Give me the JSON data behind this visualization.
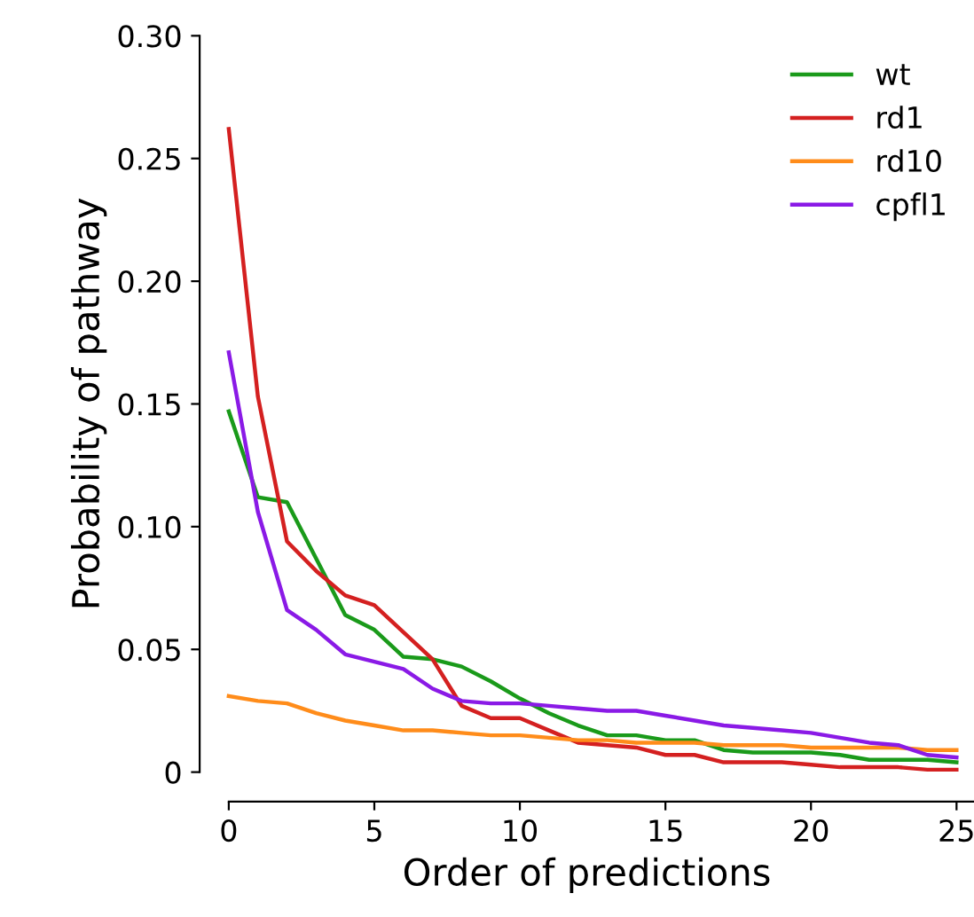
{
  "chart_data": {
    "type": "line",
    "xlabel": "Order of predictions",
    "ylabel": "Probability of pathway",
    "x": [
      0,
      1,
      2,
      3,
      4,
      5,
      6,
      7,
      8,
      9,
      10,
      11,
      12,
      13,
      14,
      15,
      16,
      17,
      18,
      19,
      20,
      21,
      22,
      23,
      24,
      25
    ],
    "series": [
      {
        "name": "wt",
        "color": "#1a9a1a",
        "values": [
          0.147,
          0.112,
          0.11,
          0.087,
          0.064,
          0.058,
          0.047,
          0.046,
          0.043,
          0.037,
          0.03,
          0.024,
          0.019,
          0.015,
          0.015,
          0.013,
          0.013,
          0.009,
          0.008,
          0.008,
          0.008,
          0.007,
          0.005,
          0.005,
          0.005,
          0.004
        ]
      },
      {
        "name": "rd1",
        "color": "#d42020",
        "values": [
          0.262,
          0.153,
          0.094,
          0.082,
          0.072,
          0.068,
          0.057,
          0.046,
          0.027,
          0.022,
          0.022,
          0.017,
          0.012,
          0.011,
          0.01,
          0.007,
          0.007,
          0.004,
          0.004,
          0.004,
          0.003,
          0.002,
          0.002,
          0.002,
          0.001,
          0.001
        ]
      },
      {
        "name": "rd10",
        "color": "#ff8c1a",
        "values": [
          0.031,
          0.029,
          0.028,
          0.024,
          0.021,
          0.019,
          0.017,
          0.017,
          0.016,
          0.015,
          0.015,
          0.014,
          0.013,
          0.013,
          0.012,
          0.012,
          0.012,
          0.011,
          0.011,
          0.011,
          0.01,
          0.01,
          0.01,
          0.01,
          0.009,
          0.009
        ]
      },
      {
        "name": "cpfl1",
        "color": "#8a1ae6",
        "values": [
          0.171,
          0.106,
          0.066,
          0.058,
          0.048,
          0.045,
          0.042,
          0.034,
          0.029,
          0.028,
          0.028,
          0.027,
          0.026,
          0.025,
          0.025,
          0.023,
          0.021,
          0.019,
          0.018,
          0.017,
          0.016,
          0.014,
          0.012,
          0.011,
          0.007,
          0.006
        ]
      }
    ],
    "xlim": [
      -1,
      25.6
    ],
    "ylim": [
      0,
      0.3
    ],
    "xticks": [
      0,
      5,
      10,
      15,
      20,
      25
    ],
    "yticks": [
      {
        "value": 0,
        "label": "0"
      },
      {
        "value": 0.05,
        "label": "0.05"
      },
      {
        "value": 0.1,
        "label": "0.10"
      },
      {
        "value": 0.15,
        "label": "0.15"
      },
      {
        "value": 0.2,
        "label": "0.20"
      },
      {
        "value": 0.25,
        "label": "0.25"
      },
      {
        "value": 0.3,
        "label": "0.30"
      }
    ],
    "grid": false,
    "legend": "top right",
    "marker": "none",
    "line_style": "solid"
  }
}
